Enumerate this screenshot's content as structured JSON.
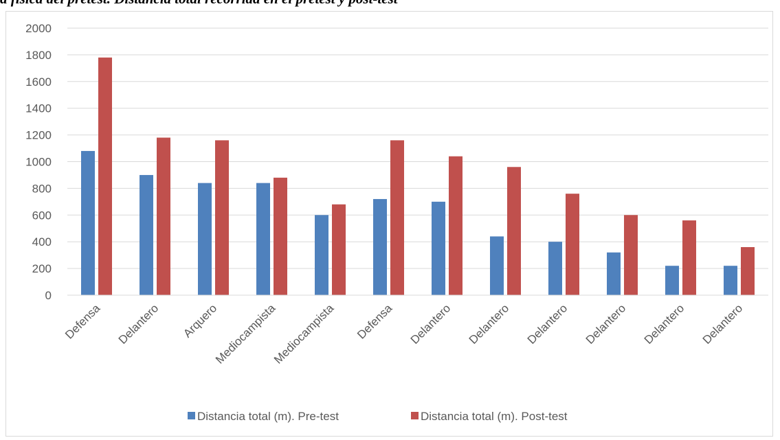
{
  "caption": "a fisica del pretest. Distancia total recorrida en el pretest y post-test",
  "colors": {
    "pre": "#4f81bd",
    "post": "#c0504d",
    "grid": "#d9d9d9",
    "text": "#595959"
  },
  "chart_data": {
    "type": "bar",
    "categories": [
      "Defensa",
      "Delantero",
      "Arquero",
      "Mediocampista",
      "Mediocampista",
      "Defensa",
      "Delantero",
      "Delantero",
      "Delantero",
      "Delantero",
      "Delantero",
      "Delantero"
    ],
    "series": [
      {
        "name": "Distancia total (m). Pre-test",
        "values": [
          1080,
          900,
          840,
          840,
          600,
          720,
          700,
          440,
          400,
          320,
          220,
          220
        ]
      },
      {
        "name": "Distancia total (m). Post-test",
        "values": [
          1780,
          1180,
          1160,
          880,
          680,
          1160,
          1040,
          960,
          760,
          600,
          560,
          360
        ]
      }
    ],
    "yticks": [
      0,
      200,
      400,
      600,
      800,
      1000,
      1200,
      1400,
      1600,
      1800,
      2000
    ],
    "ylim": [
      0,
      2000
    ],
    "grid": true,
    "legend_position": "bottom"
  }
}
